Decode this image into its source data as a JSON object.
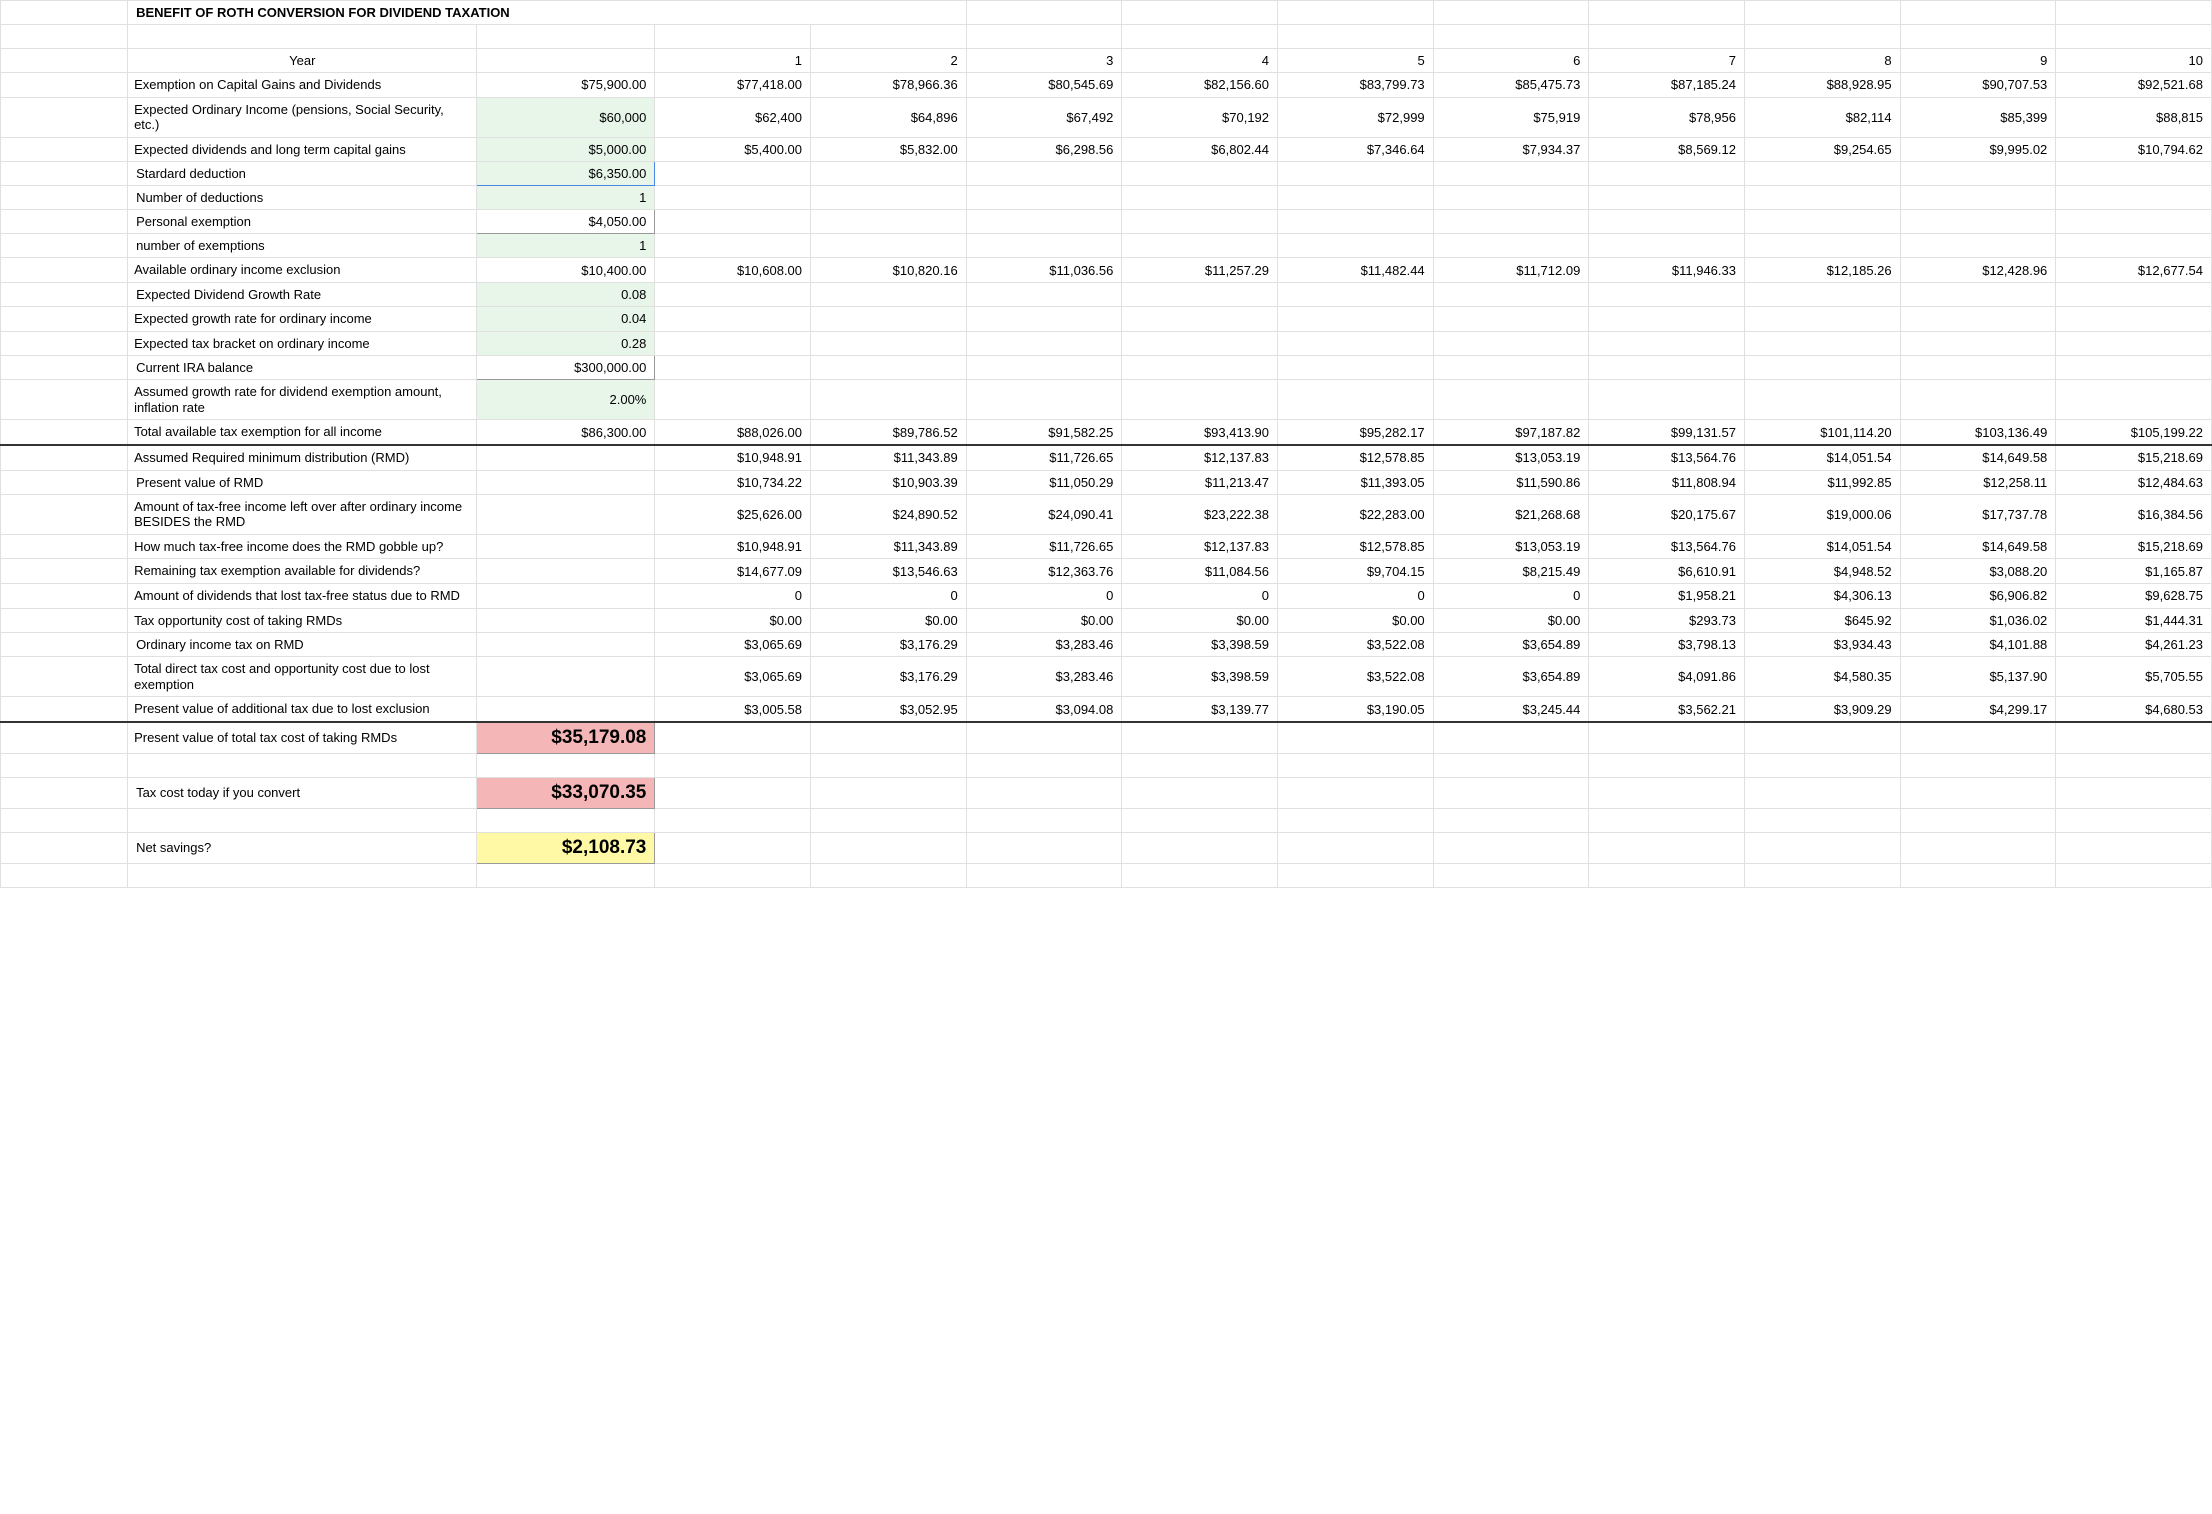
{
  "title": "BENEFIT OF ROTH CONVERSION FOR DIVIDEND TAXATION",
  "header": {
    "year_label": "Year",
    "years": [
      "1",
      "2",
      "3",
      "4",
      "5",
      "6",
      "7",
      "8",
      "9",
      "10"
    ]
  },
  "rows": [
    {
      "label": "Exemption on Capital Gains and Dividends",
      "val": "$75,900.00",
      "cells": [
        "$77,418.00",
        "$78,966.36",
        "$80,545.69",
        "$82,156.60",
        "$83,799.73",
        "$85,475.73",
        "$87,185.24",
        "$88,928.95",
        "$90,707.53",
        "$92,521.68"
      ],
      "multiline": true,
      "green": false
    },
    {
      "label": "Expected Ordinary Income (pensions, Social Security, etc.)",
      "val": "$60,000",
      "cells": [
        "$62,400",
        "$64,896",
        "$67,492",
        "$70,192",
        "$72,999",
        "$75,919",
        "$78,956",
        "$82,114",
        "$85,399",
        "$88,815"
      ],
      "multiline": true,
      "green": true
    },
    {
      "label": "Expected dividends and long term capital gains",
      "val": "$5,000.00",
      "cells": [
        "$5,400.00",
        "$5,832.00",
        "$6,298.56",
        "$6,802.44",
        "$7,346.64",
        "$7,934.37",
        "$8,569.12",
        "$9,254.65",
        "$9,995.02",
        "$10,794.62"
      ],
      "multiline": true,
      "green": true
    },
    {
      "label": "Stardard deduction",
      "val": "$6,350.00",
      "cells": [
        "",
        "",
        "",
        "",
        "",
        "",
        "",
        "",
        "",
        ""
      ],
      "selected": true
    },
    {
      "label": "Number of deductions",
      "val": "1",
      "cells": [
        "",
        "",
        "",
        "",
        "",
        "",
        "",
        "",
        "",
        ""
      ],
      "green": true
    },
    {
      "label": "Personal exemption",
      "val": "$4,050.00",
      "cells": [
        "",
        "",
        "",
        "",
        "",
        "",
        "",
        "",
        "",
        ""
      ],
      "bordered": true
    },
    {
      "label": "number of exemptions",
      "val": "1",
      "cells": [
        "",
        "",
        "",
        "",
        "",
        "",
        "",
        "",
        "",
        ""
      ],
      "green": true
    },
    {
      "label": "Available ordinary income exclusion",
      "val": "$10,400.00",
      "cells": [
        "$10,608.00",
        "$10,820.16",
        "$11,036.56",
        "$11,257.29",
        "$11,482.44",
        "$11,712.09",
        "$11,946.33",
        "$12,185.26",
        "$12,428.96",
        "$12,677.54"
      ],
      "multiline": true
    },
    {
      "label": "Expected Dividend Growth Rate",
      "val": "0.08",
      "cells": [
        "",
        "",
        "",
        "",
        "",
        "",
        "",
        "",
        "",
        ""
      ],
      "green": true
    },
    {
      "label": "Expected growth rate for ordinary income",
      "val": "0.04",
      "cells": [
        "",
        "",
        "",
        "",
        "",
        "",
        "",
        "",
        "",
        ""
      ],
      "multiline": true,
      "green": true
    },
    {
      "label": "Expected tax bracket on ordinary income",
      "val": "0.28",
      "cells": [
        "",
        "",
        "",
        "",
        "",
        "",
        "",
        "",
        "",
        ""
      ],
      "multiline": true,
      "green": true
    },
    {
      "label": "Current IRA balance",
      "val": "$300,000.00",
      "cells": [
        "",
        "",
        "",
        "",
        "",
        "",
        "",
        "",
        "",
        ""
      ],
      "bordered": true
    },
    {
      "label": "Assumed growth rate for dividend exemption amount, inflation rate",
      "val": "2.00%",
      "cells": [
        "",
        "",
        "",
        "",
        "",
        "",
        "",
        "",
        "",
        ""
      ],
      "multiline": true,
      "green": true
    },
    {
      "label": "Total available tax exemption for all income",
      "val": "$86,300.00",
      "cells": [
        "$88,026.00",
        "$89,786.52",
        "$91,582.25",
        "$93,413.90",
        "$95,282.17",
        "$97,187.82",
        "$99,131.57",
        "$101,114.20",
        "$103,136.49",
        "$105,199.22"
      ],
      "multiline": true,
      "thickBottom": true
    },
    {
      "label": "Assumed Required minimum distribution (RMD)",
      "val": "",
      "cells": [
        "$10,948.91",
        "$11,343.89",
        "$11,726.65",
        "$12,137.83",
        "$12,578.85",
        "$13,053.19",
        "$13,564.76",
        "$14,051.54",
        "$14,649.58",
        "$15,218.69"
      ],
      "multiline": true
    },
    {
      "label": "Present value of RMD",
      "val": "",
      "cells": [
        "$10,734.22",
        "$10,903.39",
        "$11,050.29",
        "$11,213.47",
        "$11,393.05",
        "$11,590.86",
        "$11,808.94",
        "$11,992.85",
        "$12,258.11",
        "$12,484.63"
      ]
    },
    {
      "label": "Amount of tax-free income left over after ordinary income BESIDES the RMD",
      "val": "",
      "cells": [
        "$25,626.00",
        "$24,890.52",
        "$24,090.41",
        "$23,222.38",
        "$22,283.00",
        "$21,268.68",
        "$20,175.67",
        "$19,000.06",
        "$17,737.78",
        "$16,384.56"
      ],
      "multiline": true
    },
    {
      "label": "How much tax-free income does the RMD gobble up?",
      "val": "",
      "cells": [
        "$10,948.91",
        "$11,343.89",
        "$11,726.65",
        "$12,137.83",
        "$12,578.85",
        "$13,053.19",
        "$13,564.76",
        "$14,051.54",
        "$14,649.58",
        "$15,218.69"
      ],
      "multiline": true
    },
    {
      "label": "Remaining tax exemption available for dividends?",
      "val": "",
      "cells": [
        "$14,677.09",
        "$13,546.63",
        "$12,363.76",
        "$11,084.56",
        "$9,704.15",
        "$8,215.49",
        "$6,610.91",
        "$4,948.52",
        "$3,088.20",
        "$1,165.87"
      ],
      "multiline": true
    },
    {
      "label": "Amount of dividends that lost tax-free status due to RMD",
      "val": "",
      "cells": [
        "0",
        "0",
        "0",
        "0",
        "0",
        "0",
        "$1,958.21",
        "$4,306.13",
        "$6,906.82",
        "$9,628.75"
      ],
      "multiline": true
    },
    {
      "label": "Tax opportunity cost of taking RMDs",
      "val": "",
      "cells": [
        "$0.00",
        "$0.00",
        "$0.00",
        "$0.00",
        "$0.00",
        "$0.00",
        "$293.73",
        "$645.92",
        "$1,036.02",
        "$1,444.31"
      ],
      "multiline": true
    },
    {
      "label": "Ordinary income tax on RMD",
      "val": "",
      "cells": [
        "$3,065.69",
        "$3,176.29",
        "$3,283.46",
        "$3,398.59",
        "$3,522.08",
        "$3,654.89",
        "$3,798.13",
        "$3,934.43",
        "$4,101.88",
        "$4,261.23"
      ]
    },
    {
      "label": "Total direct tax cost and opportunity cost due to lost exemption",
      "val": "",
      "cells": [
        "$3,065.69",
        "$3,176.29",
        "$3,283.46",
        "$3,398.59",
        "$3,522.08",
        "$3,654.89",
        "$4,091.86",
        "$4,580.35",
        "$5,137.90",
        "$5,705.55"
      ],
      "multiline": true
    },
    {
      "label": "Present value of additional tax due to lost exclusion",
      "val": "",
      "cells": [
        "$3,005.58",
        "$3,052.95",
        "$3,094.08",
        "$3,139.77",
        "$3,190.05",
        "$3,245.44",
        "$3,562.21",
        "$3,909.29",
        "$4,299.17",
        "$4,680.53"
      ],
      "multiline": true,
      "thickBottom": true
    }
  ],
  "results": [
    {
      "label": "Present value of total tax cost of taking RMDs",
      "val": "$35,179.08",
      "class": "red-result",
      "multiline": true
    },
    {
      "label": "",
      "val": ""
    },
    {
      "label": "Tax cost today if you convert",
      "val": "$33,070.35",
      "class": "red-result"
    },
    {
      "label": "",
      "val": ""
    },
    {
      "label": "Net savings?",
      "val": "$2,108.73",
      "class": "yellow-result"
    }
  ]
}
